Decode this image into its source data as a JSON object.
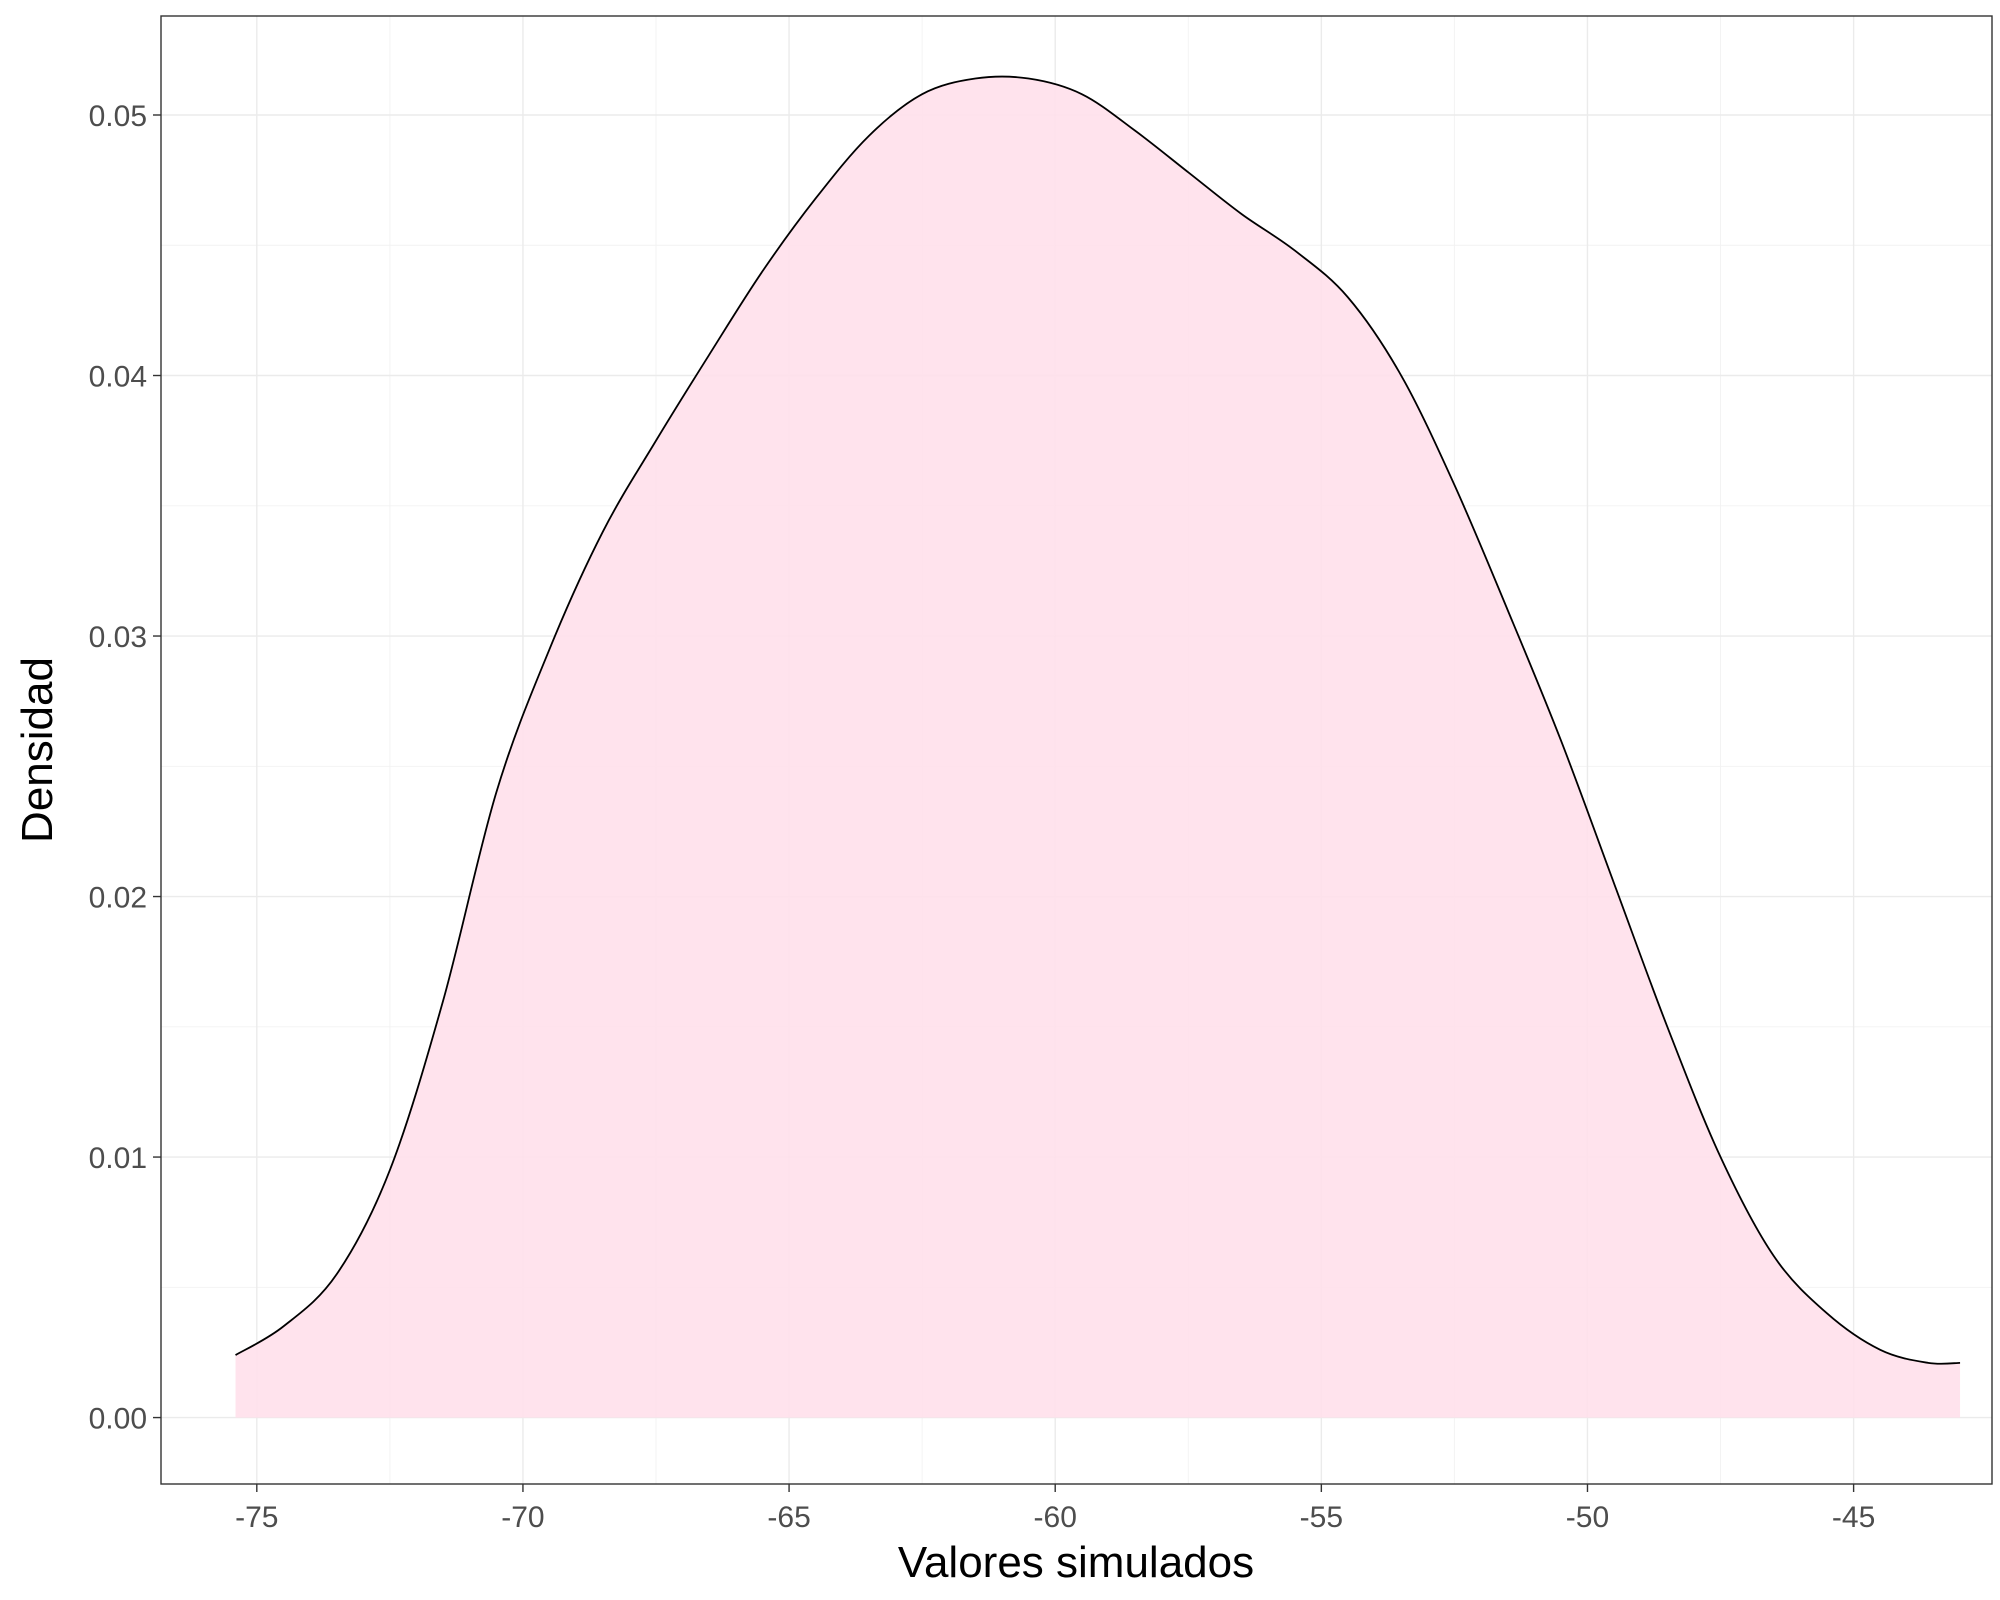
{
  "chart_data": {
    "type": "area",
    "title": "",
    "xlabel": "Valores simulados",
    "ylabel": "Densidad",
    "xlim": [
      -76.8,
      -42.4
    ],
    "ylim": [
      -0.00255,
      0.0538
    ],
    "x_ticks": [
      -75,
      -70,
      -65,
      -60,
      -55,
      -50,
      -45
    ],
    "x_tick_labels": [
      "-75",
      "-70",
      "-65",
      "-60",
      "-55",
      "-50",
      "-45"
    ],
    "y_ticks": [
      0.0,
      0.01,
      0.02,
      0.03,
      0.04,
      0.05
    ],
    "y_tick_labels": [
      "0.00",
      "0.01",
      "0.02",
      "0.03",
      "0.04",
      "0.05"
    ],
    "grid": true,
    "legend": "none",
    "fill_color": "#ffe0eb",
    "line_color": "#000000",
    "series": [
      {
        "x": [
          -75.4,
          -74.5,
          -73.5,
          -72.5,
          -71.5,
          -70.5,
          -69.5,
          -68.5,
          -67.5,
          -66.5,
          -65.5,
          -64.5,
          -63.5,
          -62.5,
          -61.5,
          -60.5,
          -59.5,
          -58.5,
          -57.5,
          -56.5,
          -55.5,
          -54.5,
          -53.5,
          -52.5,
          -51.5,
          -50.5,
          -49.5,
          -48.5,
          -47.5,
          -46.5,
          -45.5,
          -44.5,
          -43.6,
          -43.0
        ],
        "y": [
          0.0024,
          0.0035,
          0.0055,
          0.0095,
          0.016,
          0.024,
          0.0295,
          0.034,
          0.0375,
          0.0408,
          0.044,
          0.0468,
          0.0492,
          0.0508,
          0.0514,
          0.0514,
          0.0508,
          0.0494,
          0.0478,
          0.0462,
          0.0448,
          0.043,
          0.04,
          0.0358,
          0.031,
          0.026,
          0.0205,
          0.015,
          0.01,
          0.0062,
          0.004,
          0.0026,
          0.0021,
          0.0021
        ]
      }
    ]
  }
}
